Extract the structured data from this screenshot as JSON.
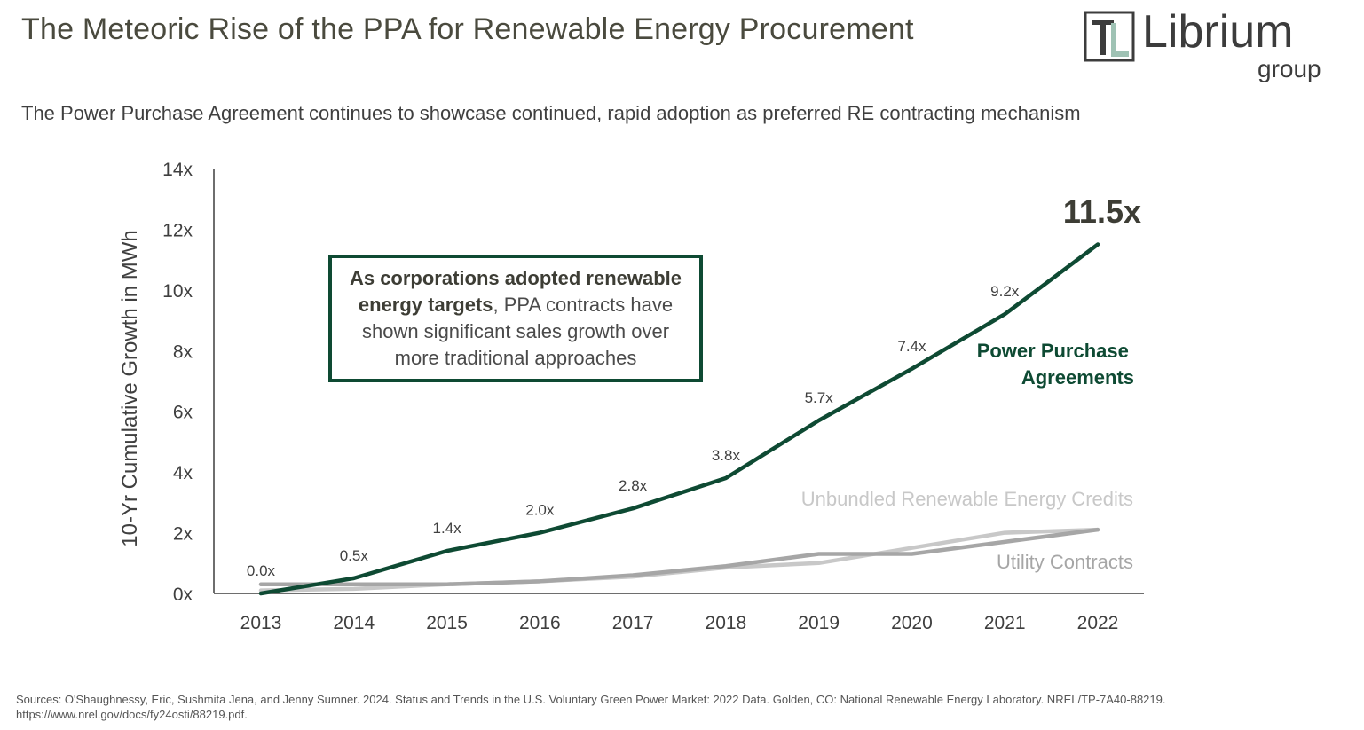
{
  "header": {
    "title": "The Meteoric Rise of the PPA for Renewable Energy Procurement",
    "subtitle": "The Power Purchase Agreement continues to showcase continued, rapid adoption as preferred RE contracting mechanism"
  },
  "logo": {
    "icon": "librium-tl-monogram",
    "word": "Librium",
    "sub": "group"
  },
  "callout": {
    "bold": "As corporations adopted renewable energy targets",
    "rest": ", PPA contracts have shown significant sales growth over more traditional approaches"
  },
  "sources": {
    "line1": "Sources: O'Shaughnessy, Eric, Sushmita Jena, and Jenny Sumner. 2024. Status and Trends in the U.S. Voluntary Green Power Market: 2022 Data. Golden, CO: National Renewable Energy Laboratory. NREL/TP-7A40-88219.",
    "line2": "https://www.nrel.gov/docs/fy24osti/88219.pdf."
  },
  "colors": {
    "ppa": "#0e4a33",
    "utility": "#a6a6a6",
    "urec": "#c8c8c8",
    "axis": "#3f3f3f",
    "text": "#404040"
  },
  "chart_data": {
    "type": "line",
    "title": "",
    "xlabel": "",
    "ylabel": "10-Yr Cumulative Growth in MWh",
    "categories": [
      "2013",
      "2014",
      "2015",
      "2016",
      "2017",
      "2018",
      "2019",
      "2020",
      "2021",
      "2022"
    ],
    "ylim": [
      0,
      14
    ],
    "yticks": [
      0,
      2,
      4,
      6,
      8,
      10,
      12,
      14
    ],
    "ytick_labels": [
      "0x",
      "2x",
      "4x",
      "6x",
      "8x",
      "10x",
      "12x",
      "14x"
    ],
    "grid": false,
    "series": [
      {
        "name": "Power Purchase Agreements",
        "values": [
          0.0,
          0.5,
          1.4,
          2.0,
          2.8,
          3.8,
          5.7,
          7.4,
          9.2,
          11.5
        ],
        "data_labels": [
          "0.0x",
          "0.5x",
          "1.4x",
          "2.0x",
          "2.8x",
          "3.8x",
          "5.7x",
          "7.4x",
          "9.2x",
          ""
        ],
        "end_label": "11.5x"
      },
      {
        "name": "Utility Contracts",
        "values": [
          0.3,
          0.3,
          0.3,
          0.4,
          0.6,
          0.9,
          1.3,
          1.3,
          1.7,
          2.1
        ]
      },
      {
        "name": "Unbundled Renewable Energy Credits",
        "values": [
          0.1,
          0.15,
          0.3,
          0.4,
          0.55,
          0.85,
          1.0,
          1.5,
          2.0,
          2.1
        ]
      }
    ]
  }
}
